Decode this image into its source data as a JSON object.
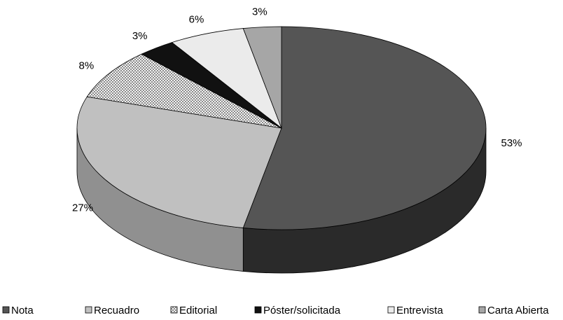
{
  "chart_data": {
    "type": "pie",
    "title": "",
    "categories": [
      "Nota",
      "Recuadro",
      "Editorial",
      "Póster/solicitada",
      "Entrevista",
      "Carta Abierta"
    ],
    "values": [
      53,
      27,
      8,
      3,
      6,
      3
    ],
    "value_labels": [
      "53%",
      "27%",
      "8%",
      "3%",
      "6%",
      "3%"
    ],
    "colors": [
      "#555555",
      "#c0c0c0",
      "#dcdcdc",
      "#111111",
      "#ebebeb",
      "#a6a6a6"
    ],
    "side_colors": [
      "#2a2a2a",
      "#909090",
      "#a8a8a8",
      "#000000",
      "#b8b8b8",
      "#7c7c7c"
    ],
    "patterns": [
      "solid",
      "solid",
      "checker",
      "solid",
      "solid",
      "solid"
    ],
    "style": "3d",
    "legend_position": "bottom"
  }
}
